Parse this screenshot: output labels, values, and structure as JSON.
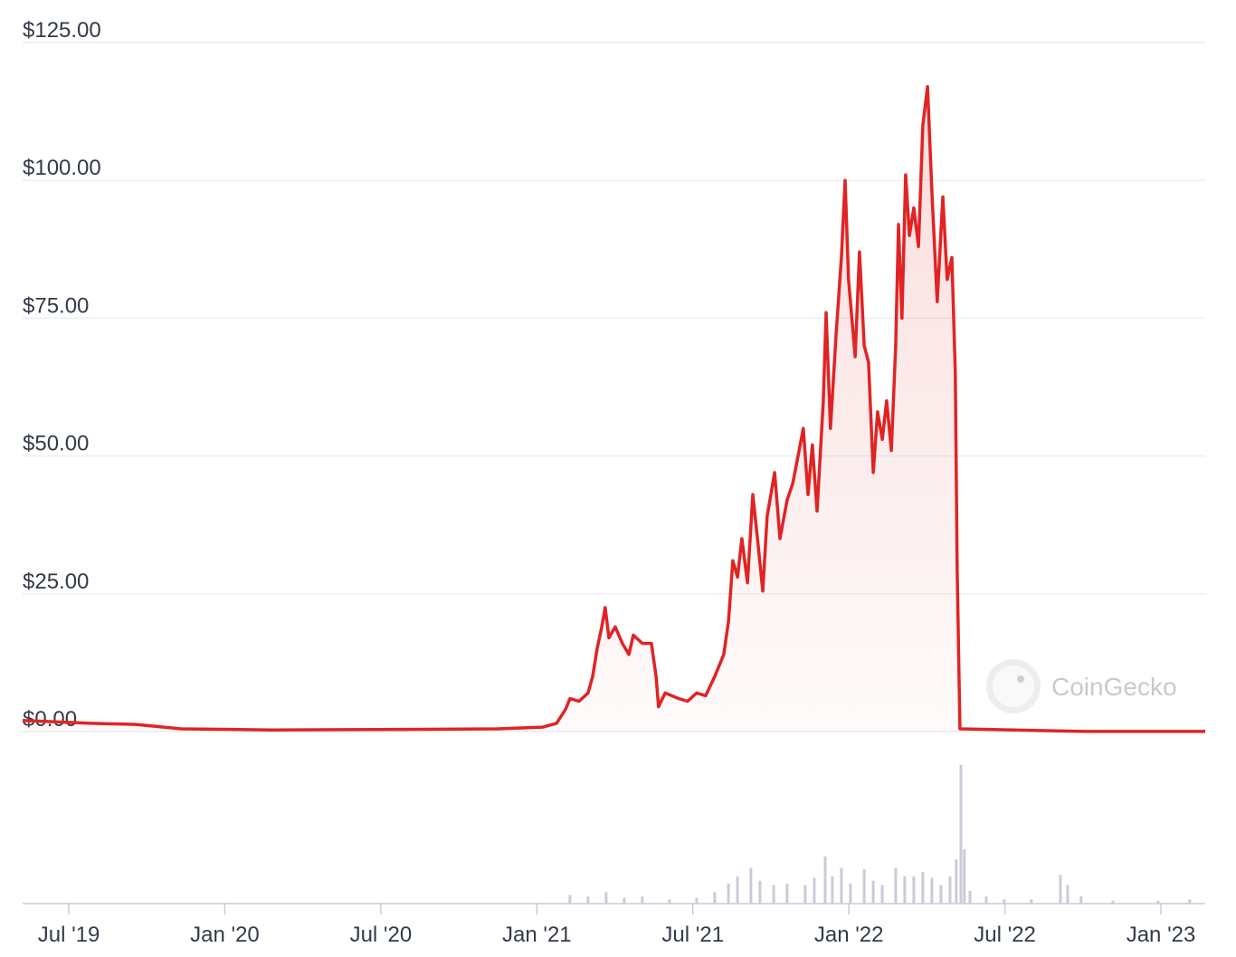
{
  "chart_data": [
    {
      "type": "line",
      "watermark": "CoinGecko",
      "xlim": [
        2019.352,
        2023.142
      ],
      "xticks": [
        {
          "value": 2019.5,
          "label": "Jul '19"
        },
        {
          "value": 2020.0,
          "label": "Jan '20"
        },
        {
          "value": 2020.5,
          "label": "Jul '20"
        },
        {
          "value": 2021.0,
          "label": "Jan '21"
        },
        {
          "value": 2021.5,
          "label": "Jul '21"
        },
        {
          "value": 2022.0,
          "label": "Jan '22"
        },
        {
          "value": 2022.5,
          "label": "Jul '22"
        },
        {
          "value": 2023.0,
          "label": "Jan '23"
        }
      ],
      "ylim": [
        0,
        125
      ],
      "yticks": [
        {
          "value": 0,
          "label": "$0.00"
        },
        {
          "value": 25,
          "label": "$25.00"
        },
        {
          "value": 50,
          "label": "$50.00"
        },
        {
          "value": 75,
          "label": "$75.00"
        },
        {
          "value": 100,
          "label": "$100.00"
        },
        {
          "value": 125,
          "label": "$125.00"
        }
      ],
      "grid": true,
      "color": "#e02424",
      "x": [
        2019.352,
        2019.57,
        2019.715,
        2019.86,
        2020.149,
        2020.584,
        2020.874,
        2021.019,
        2021.063,
        2021.092,
        2021.106,
        2021.135,
        2021.164,
        2021.179,
        2021.193,
        2021.208,
        2021.219,
        2021.231,
        2021.251,
        2021.274,
        2021.295,
        2021.309,
        2021.338,
        2021.367,
        2021.382,
        2021.39,
        2021.411,
        2021.454,
        2021.483,
        2021.512,
        2021.541,
        2021.57,
        2021.599,
        2021.614,
        2021.628,
        2021.643,
        2021.657,
        2021.675,
        2021.692,
        2021.709,
        2021.724,
        2021.738,
        2021.762,
        2021.779,
        2021.802,
        2021.82,
        2021.837,
        2021.854,
        2021.869,
        2021.883,
        2021.898,
        2021.918,
        2021.927,
        2021.941,
        2021.959,
        2021.976,
        2021.988,
        2021.999,
        2022.02,
        2022.034,
        2022.049,
        2022.063,
        2022.078,
        2022.092,
        2022.107,
        2022.121,
        2022.136,
        2022.15,
        2022.159,
        2022.17,
        2022.182,
        2022.194,
        2022.208,
        2022.223,
        2022.237,
        2022.252,
        2022.266,
        2022.283,
        2022.301,
        2022.315,
        2022.33,
        2022.341,
        2022.347,
        2022.356,
        2022.759,
        2023.142
      ],
      "values": [
        2.0,
        1.5,
        1.3,
        0.5,
        0.3,
        0.4,
        0.5,
        0.8,
        1.5,
        4,
        6,
        5.5,
        7,
        10,
        15,
        19,
        22.5,
        17,
        19,
        16,
        14,
        17.5,
        16,
        16,
        10,
        4.5,
        7,
        6,
        5.5,
        7,
        6.5,
        10,
        14,
        20,
        31,
        28,
        35,
        27,
        43,
        34,
        25.5,
        39,
        47,
        35,
        42,
        45,
        50,
        55,
        43,
        52,
        40,
        60,
        76,
        55,
        72,
        86,
        100,
        82,
        68,
        87,
        70,
        67,
        47,
        58,
        53,
        60,
        51,
        70,
        92,
        75,
        101,
        90,
        95,
        88,
        110,
        117,
        98,
        78,
        97,
        82,
        86,
        65,
        30,
        0.5,
        0.01,
        0.01
      ]
    },
    {
      "type": "bar",
      "color": "#c9ccd8",
      "xlim": [
        2019.352,
        2023.142
      ],
      "ylim": [
        0,
        100
      ],
      "x": [
        2021.106,
        2021.164,
        2021.222,
        2021.28,
        2021.338,
        2021.425,
        2021.512,
        2021.57,
        2021.614,
        2021.643,
        2021.686,
        2021.715,
        2021.759,
        2021.802,
        2021.86,
        2021.889,
        2021.924,
        2021.947,
        2021.976,
        2022.005,
        2022.049,
        2022.078,
        2022.107,
        2022.15,
        2022.179,
        2022.208,
        2022.237,
        2022.266,
        2022.295,
        2022.324,
        2022.344,
        2022.359,
        2022.37,
        2022.388,
        2022.44,
        2022.498,
        2022.585,
        2022.678,
        2022.701,
        2022.744,
        2022.846,
        2022.991,
        2023.092
      ],
      "values": [
        6,
        5,
        8,
        4,
        5,
        3,
        4,
        8,
        14,
        19,
        25,
        16,
        13,
        14,
        13,
        18,
        33,
        19,
        25,
        14,
        24,
        16,
        13,
        25,
        19,
        19,
        22,
        18,
        13,
        19,
        31,
        97,
        38,
        9,
        5,
        3,
        3,
        20,
        13,
        5,
        2,
        2,
        3
      ]
    }
  ]
}
